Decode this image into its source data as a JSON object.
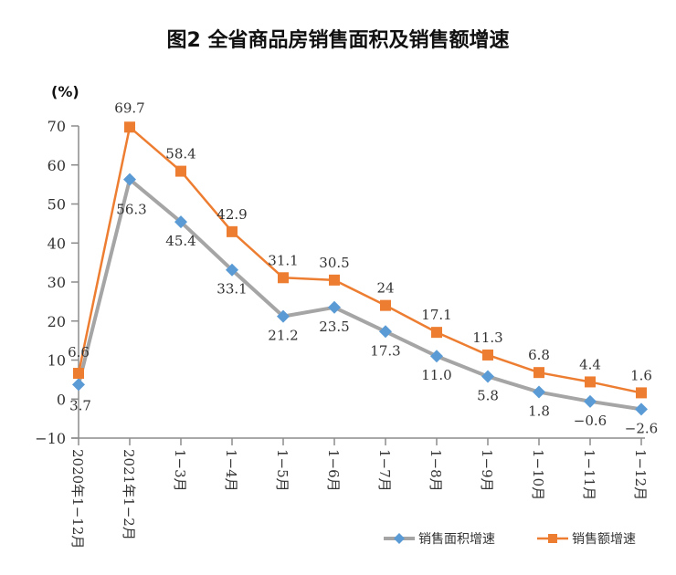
{
  "chart_data": {
    "type": "line",
    "title": "图2 全省商品房销售面积及销售额增速",
    "ylabel": "(%)",
    "xlabel": "",
    "ylim": [
      -10,
      70
    ],
    "yticks": [
      -10,
      0,
      10,
      20,
      30,
      40,
      50,
      60,
      70
    ],
    "ytick_labels": [
      "−10",
      "0",
      "10",
      "20",
      "30",
      "40",
      "50",
      "60",
      "70"
    ],
    "grid": false,
    "legend_position": "bottom-right",
    "categories": [
      "2020年1−12月",
      "2021年1−2月",
      "1−3月",
      "1−4月",
      "1−5月",
      "1−6月",
      "1−7月",
      "1−8月",
      "1−9月",
      "1−10月",
      "1−11月",
      "1−12月"
    ],
    "series": [
      {
        "name": "销售面积增速",
        "color": "#5b9bd5",
        "line_color": "#a5a5a5",
        "marker": "diamond",
        "values": [
          3.7,
          56.3,
          45.4,
          33.1,
          21.2,
          23.5,
          17.3,
          11.0,
          5.8,
          1.8,
          -0.6,
          -2.6
        ],
        "labels": [
          "3.7",
          "56.3",
          "45.4",
          "33.1",
          "21.2",
          "23.5",
          "17.3",
          "11.0",
          "5.8",
          "1.8",
          "−0.6",
          "−2.6"
        ]
      },
      {
        "name": "销售额增速",
        "color": "#ed7d31",
        "line_color": "#ed7d31",
        "marker": "square",
        "values": [
          6.6,
          69.7,
          58.4,
          42.9,
          31.1,
          30.5,
          24,
          17.1,
          11.3,
          6.8,
          4.4,
          1.6
        ],
        "labels": [
          "6.6",
          "69.7",
          "58.4",
          "42.9",
          "31.1",
          "30.5",
          "24",
          "17.1",
          "11.3",
          "6.8",
          "4.4",
          "1.6"
        ]
      }
    ]
  }
}
